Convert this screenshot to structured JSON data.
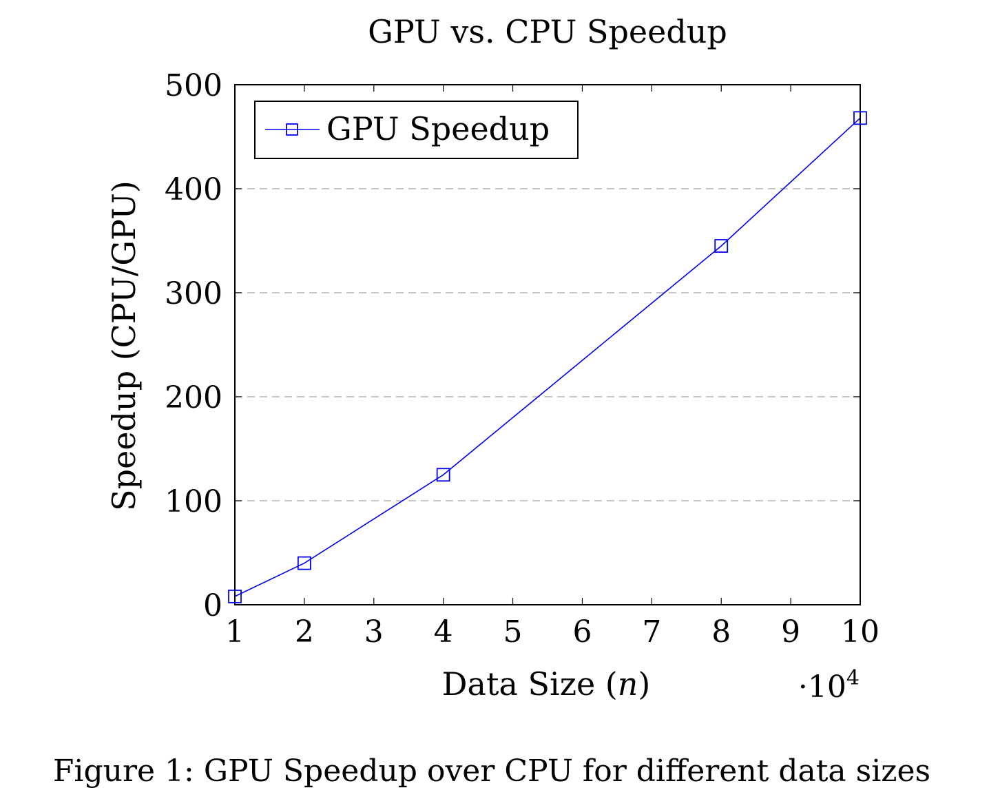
{
  "chart_data": {
    "type": "line",
    "title": "GPU vs. CPU Speedup",
    "xlabel_prefix": "Data Size (",
    "xlabel_var": "n",
    "xlabel_suffix": ")",
    "x_multiplier_base": "·10",
    "x_multiplier_exp": "4",
    "ylabel": "Speedup (CPU/GPU)",
    "xlim": [
      1,
      10
    ],
    "ylim": [
      0,
      500
    ],
    "xticks": [
      1,
      2,
      3,
      4,
      5,
      6,
      7,
      8,
      9,
      10
    ],
    "yticks": [
      0,
      100,
      200,
      300,
      400,
      500
    ],
    "grid": "horizontal dashed",
    "legend_position": "top-left",
    "series": [
      {
        "name": "GPU Speedup",
        "color": "#0000ee",
        "marker": "square",
        "x": [
          1,
          2,
          4,
          8,
          10
        ],
        "y": [
          8,
          40,
          125,
          345,
          468
        ]
      }
    ]
  },
  "caption": "Figure 1: GPU Speedup over CPU for different data sizes"
}
